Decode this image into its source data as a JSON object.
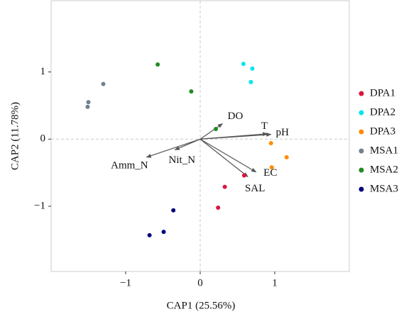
{
  "chart_data": {
    "type": "scatter",
    "x_label": "CAP1 (25.56%)",
    "y_label": "CAP2 (11.78%)",
    "xlim": [
      -2.0,
      2.0
    ],
    "ylim": [
      -1.97,
      2.06
    ],
    "xticks": [
      {
        "value": -1,
        "label": "−1"
      },
      0,
      1
    ],
    "yticks": [
      {
        "value": -1,
        "label": "−1"
      },
      0,
      1
    ],
    "legend": "right",
    "series": [
      {
        "name": "DPA1",
        "color": "#dc143c",
        "x": [
          0.59,
          0.33,
          0.24
        ],
        "y": [
          -0.54,
          -0.71,
          -1.02
        ]
      },
      {
        "name": "DPA2",
        "color": "#00e5ee",
        "x": [
          0.58,
          0.7,
          0.68
        ],
        "y": [
          1.12,
          1.05,
          0.85
        ]
      },
      {
        "name": "DPA3",
        "color": "#ff8c00",
        "x": [
          0.95,
          1.16,
          0.96
        ],
        "y": [
          -0.06,
          -0.27,
          -0.42
        ]
      },
      {
        "name": "MSA1",
        "color": "#708090",
        "x": [
          -1.3,
          -1.5,
          -1.51
        ],
        "y": [
          0.82,
          0.55,
          0.48
        ]
      },
      {
        "name": "MSA2",
        "color": "#228b22",
        "x": [
          -0.57,
          -0.12,
          0.21
        ],
        "y": [
          1.11,
          0.71,
          0.15
        ]
      },
      {
        "name": "MSA3",
        "color": "#000080",
        "x": [
          -0.36,
          -0.49,
          -0.68
        ],
        "y": [
          -1.06,
          -1.38,
          -1.43
        ]
      }
    ],
    "arrows": [
      {
        "label": "DO",
        "x": 0.3,
        "y": 0.23
      },
      {
        "label": "T",
        "x": 0.9,
        "y": 0.08
      },
      {
        "label": "pH",
        "x": 0.95,
        "y": 0.07
      },
      {
        "label": "EC",
        "x": 0.75,
        "y": -0.49
      },
      {
        "label": "SAL",
        "x": 0.64,
        "y": -0.56
      },
      {
        "label": "Amm_N",
        "x": -0.72,
        "y": -0.27
      },
      {
        "label": "Nit_N",
        "x": -0.34,
        "y": -0.16
      }
    ]
  }
}
